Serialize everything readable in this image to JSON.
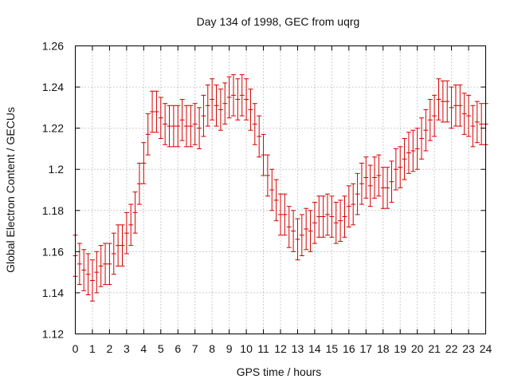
{
  "chart_data": {
    "type": "scatter",
    "title": "Day 134 of 1998, GEC from uqrg",
    "xlabel": "GPS time / hours",
    "ylabel": "Global Electron Content / GECUs",
    "xlim": [
      0,
      24
    ],
    "ylim": [
      1.12,
      1.26
    ],
    "x_ticks": [
      "0",
      "1",
      "2",
      "3",
      "4",
      "5",
      "6",
      "7",
      "8",
      "9",
      "10",
      "11",
      "12",
      "13",
      "14",
      "15",
      "16",
      "17",
      "18",
      "19",
      "20",
      "21",
      "22",
      "23",
      "24"
    ],
    "y_ticks": [
      "1.12",
      "1.14",
      "1.16",
      "1.18",
      "1.2",
      "1.22",
      "1.24",
      "1.26"
    ],
    "grid": true,
    "series_color": "#d40000",
    "error_bar": 0.01,
    "x": [
      0,
      0.25,
      0.5,
      0.75,
      1,
      1.25,
      1.5,
      1.75,
      2,
      2.25,
      2.5,
      2.75,
      3,
      3.25,
      3.5,
      3.75,
      4,
      4.25,
      4.5,
      4.75,
      5,
      5.25,
      5.5,
      5.75,
      6,
      6.25,
      6.5,
      6.75,
      7,
      7.25,
      7.5,
      7.75,
      8,
      8.25,
      8.5,
      8.75,
      9,
      9.25,
      9.5,
      9.75,
      10,
      10.25,
      10.5,
      10.75,
      11,
      11.25,
      11.5,
      11.75,
      12,
      12.25,
      12.5,
      12.75,
      13,
      13.25,
      13.5,
      13.75,
      14,
      14.25,
      14.5,
      14.75,
      15,
      15.25,
      15.5,
      15.75,
      16,
      16.25,
      16.5,
      16.75,
      17,
      17.25,
      17.5,
      17.75,
      18,
      18.25,
      18.5,
      18.75,
      19,
      19.25,
      19.5,
      19.75,
      20,
      20.25,
      20.5,
      20.75,
      21,
      21.25,
      21.5,
      21.75,
      22,
      22.25,
      22.5,
      22.75,
      23,
      23.25,
      23.5,
      23.75,
      24
    ],
    "y": [
      1.158,
      1.154,
      1.151,
      1.149,
      1.146,
      1.15,
      1.153,
      1.154,
      1.154,
      1.159,
      1.163,
      1.163,
      1.169,
      1.173,
      1.179,
      1.193,
      1.203,
      1.217,
      1.228,
      1.228,
      1.225,
      1.222,
      1.221,
      1.221,
      1.221,
      1.224,
      1.221,
      1.221,
      1.222,
      1.22,
      1.226,
      1.231,
      1.234,
      1.231,
      1.229,
      1.232,
      1.235,
      1.236,
      1.234,
      1.236,
      1.234,
      1.229,
      1.222,
      1.216,
      1.207,
      1.197,
      1.19,
      1.185,
      1.178,
      1.178,
      1.172,
      1.17,
      1.166,
      1.168,
      1.171,
      1.17,
      1.174,
      1.177,
      1.177,
      1.178,
      1.177,
      1.174,
      1.175,
      1.177,
      1.182,
      1.183,
      1.188,
      1.193,
      1.196,
      1.192,
      1.196,
      1.197,
      1.191,
      1.191,
      1.194,
      1.2,
      1.201,
      1.205,
      1.208,
      1.209,
      1.21,
      1.215,
      1.219,
      1.224,
      1.226,
      1.234,
      1.233,
      1.233,
      1.23,
      1.231,
      1.231,
      1.227,
      1.226,
      1.221,
      1.223,
      1.222,
      1.222
    ]
  }
}
